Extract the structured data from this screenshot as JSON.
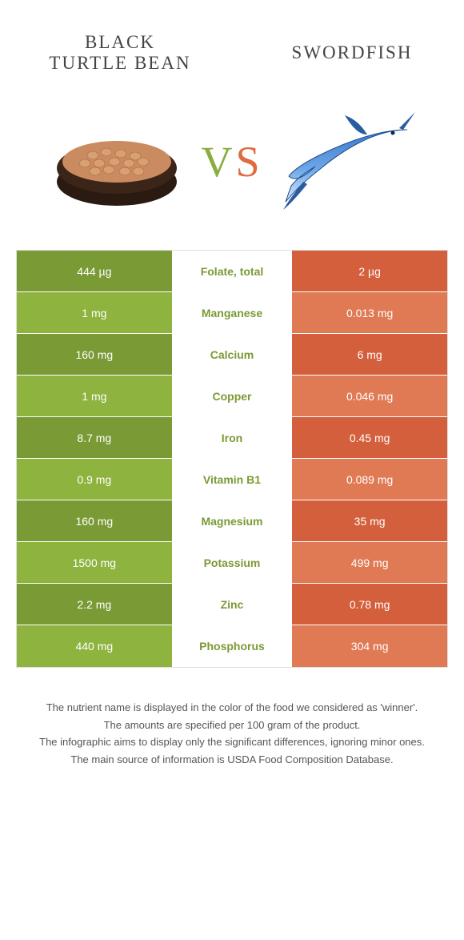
{
  "colors": {
    "left_dark": "#7a9a35",
    "left_light": "#8fb33f",
    "right_dark": "#d45f3c",
    "right_light": "#e07a55",
    "mid_text_left": "#7a9a35",
    "mid_text_right": "#d45f3c"
  },
  "header": {
    "left": "Black\nTurtle Bean",
    "right": "Swordfish"
  },
  "vs": {
    "v": "V",
    "s": "S"
  },
  "rows": [
    {
      "left": "444 µg",
      "mid": "Folate, total",
      "right": "2 µg",
      "winner": "left"
    },
    {
      "left": "1 mg",
      "mid": "Manganese",
      "right": "0.013 mg",
      "winner": "left"
    },
    {
      "left": "160 mg",
      "mid": "Calcium",
      "right": "6 mg",
      "winner": "left"
    },
    {
      "left": "1 mg",
      "mid": "Copper",
      "right": "0.046 mg",
      "winner": "left"
    },
    {
      "left": "8.7 mg",
      "mid": "Iron",
      "right": "0.45 mg",
      "winner": "left"
    },
    {
      "left": "0.9 mg",
      "mid": "Vitamin B1",
      "right": "0.089 mg",
      "winner": "left"
    },
    {
      "left": "160 mg",
      "mid": "Magnesium",
      "right": "35 mg",
      "winner": "left"
    },
    {
      "left": "1500 mg",
      "mid": "Potassium",
      "right": "499 mg",
      "winner": "left"
    },
    {
      "left": "2.2 mg",
      "mid": "Zinc",
      "right": "0.78 mg",
      "winner": "left"
    },
    {
      "left": "440 mg",
      "mid": "Phosphorus",
      "right": "304 mg",
      "winner": "left"
    }
  ],
  "footer": [
    "The nutrient name is displayed in the color of the food we considered as 'winner'.",
    "The amounts are specified per 100 gram of the product.",
    "The infographic aims to display only the significant differences, ignoring minor ones.",
    "The main source of information is USDA Food Composition Database."
  ],
  "icons": {
    "beans_bowl": "beans-bowl",
    "swordfish": "swordfish"
  }
}
